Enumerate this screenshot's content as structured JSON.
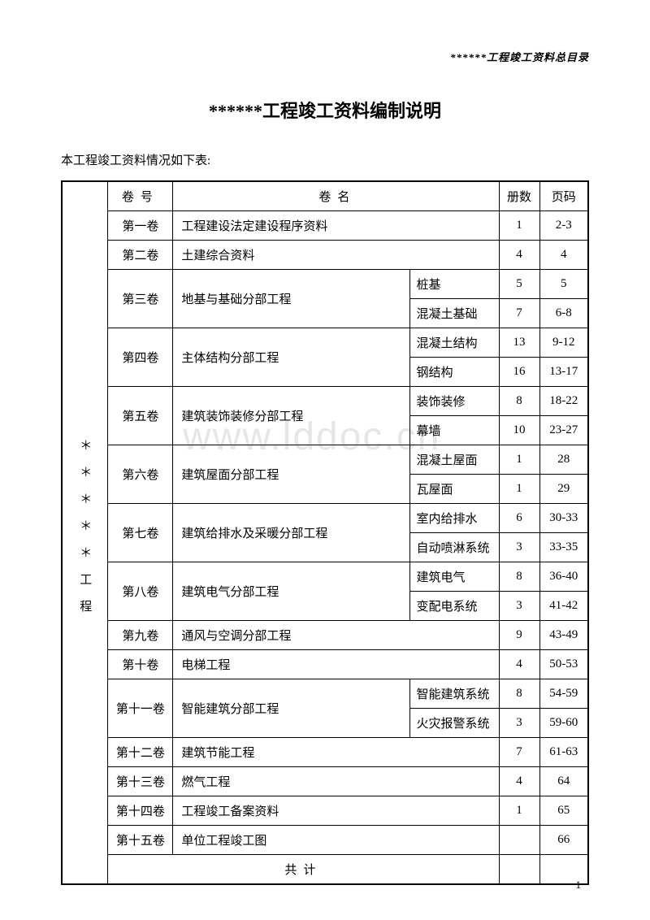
{
  "header": {
    "cornerText": "******工程竣工资料总目录"
  },
  "title": "******工程竣工资料编制说明",
  "subtitle": "本工程竣工资料情况如下表:",
  "watermark": "www.lddoc.cn",
  "pageNumber": "1",
  "table": {
    "verticalLabel": "＊＊＊＊＊工程",
    "headers": {
      "volume": "卷号",
      "name": "卷名",
      "count": "册数",
      "pages": "页码"
    },
    "totalLabel": "共计",
    "rows": [
      {
        "vol": "第一卷",
        "name": "工程建设法定建设程序资料",
        "count": "1",
        "pages": "2-3"
      },
      {
        "vol": "第二卷",
        "name": "土建综合资料",
        "count": "4",
        "pages": "4"
      },
      {
        "vol": "第三卷",
        "name": "地基与基础分部工程",
        "subs": [
          {
            "sub": "桩基",
            "count": "5",
            "pages": "5"
          },
          {
            "sub": "混凝土基础",
            "count": "7",
            "pages": "6-8"
          }
        ]
      },
      {
        "vol": "第四卷",
        "name": "主体结构分部工程",
        "subs": [
          {
            "sub": "混凝土结构",
            "count": "13",
            "pages": "9-12"
          },
          {
            "sub": "钢结构",
            "count": "16",
            "pages": "13-17"
          }
        ]
      },
      {
        "vol": "第五卷",
        "name": "建筑装饰装修分部工程",
        "subs": [
          {
            "sub": "装饰装修",
            "count": "8",
            "pages": "18-22"
          },
          {
            "sub": "幕墙",
            "count": "10",
            "pages": "23-27"
          }
        ]
      },
      {
        "vol": "第六卷",
        "name": "建筑屋面分部工程",
        "subs": [
          {
            "sub": "混凝土屋面",
            "count": "1",
            "pages": "28"
          },
          {
            "sub": "瓦屋面",
            "count": "1",
            "pages": "29"
          }
        ]
      },
      {
        "vol": "第七卷",
        "name": "建筑给排水及采暖分部工程",
        "subs": [
          {
            "sub": "室内给排水",
            "count": "6",
            "pages": "30-33"
          },
          {
            "sub": "自动喷淋系统",
            "count": "3",
            "pages": "33-35"
          }
        ]
      },
      {
        "vol": "第八卷",
        "name": "建筑电气分部工程",
        "subs": [
          {
            "sub": "建筑电气",
            "count": "8",
            "pages": "36-40"
          },
          {
            "sub": "变配电系统",
            "count": "3",
            "pages": "41-42"
          }
        ]
      },
      {
        "vol": "第九卷",
        "name": "通风与空调分部工程",
        "count": "9",
        "pages": "43-49"
      },
      {
        "vol": "第十卷",
        "name": "电梯工程",
        "count": "4",
        "pages": "50-53"
      },
      {
        "vol": "第十一卷",
        "name": "智能建筑分部工程",
        "subs": [
          {
            "sub": "智能建筑系统",
            "count": "8",
            "pages": "54-59"
          },
          {
            "sub": "火灾报警系统",
            "count": "3",
            "pages": "59-60"
          }
        ]
      },
      {
        "vol": "第十二卷",
        "name": "建筑节能工程",
        "count": "7",
        "pages": "61-63"
      },
      {
        "vol": "第十三卷",
        "name": "燃气工程",
        "count": "4",
        "pages": "64"
      },
      {
        "vol": "第十四卷",
        "name": "工程竣工备案资料",
        "count": "1",
        "pages": "65"
      },
      {
        "vol": "第十五卷",
        "name": "单位工程竣工图",
        "count": "",
        "pages": "66"
      }
    ]
  },
  "style": {
    "pageWidth": 800,
    "pageHeight": 1132,
    "background": "#ffffff",
    "textColor": "#000000",
    "borderColor": "#000000",
    "titleFontSize": 22,
    "bodyFontSize": 15,
    "watermarkColor": "rgba(200,200,200,0.45)"
  }
}
